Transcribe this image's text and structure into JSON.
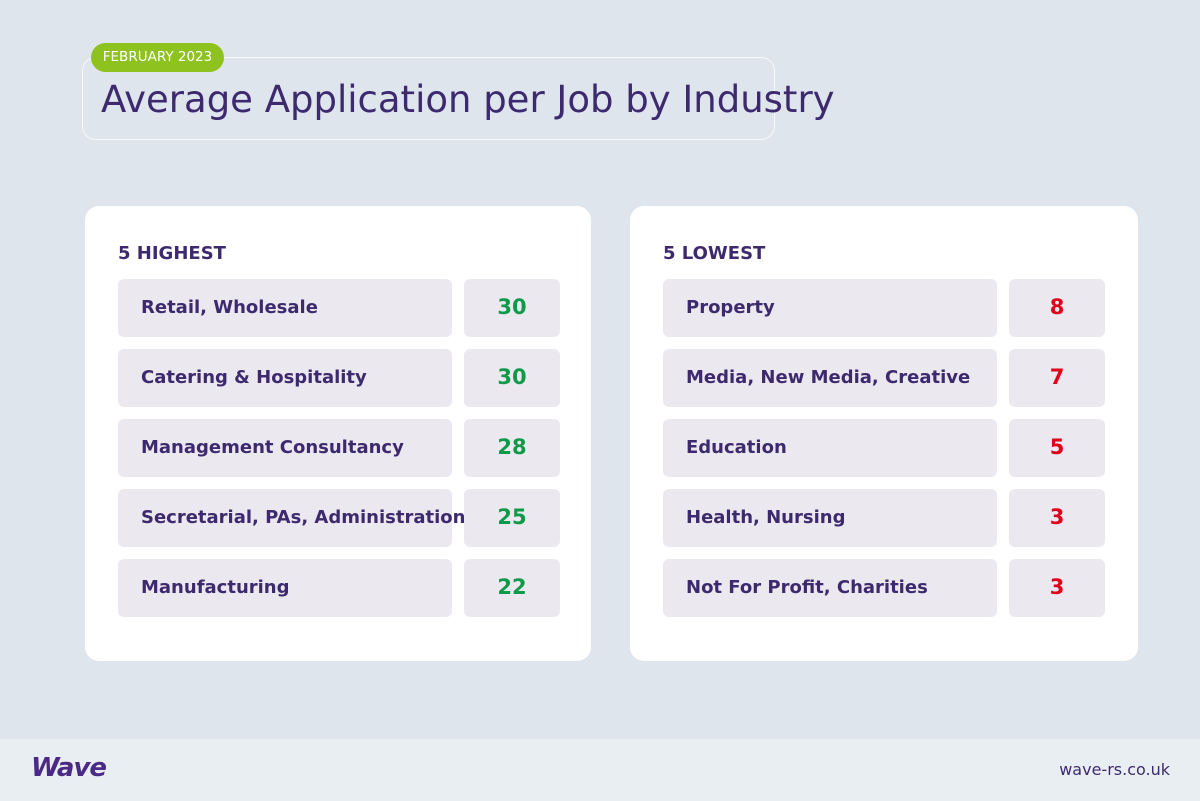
{
  "header": {
    "tag": "FEBRUARY 2023",
    "title": "Average Application per Job by Industry"
  },
  "highest": {
    "title": "5 HIGHEST",
    "rows": [
      {
        "label": "Retail, Wholesale",
        "value": 30
      },
      {
        "label": "Catering & Hospitality",
        "value": 30
      },
      {
        "label": "Management Consultancy",
        "value": 28
      },
      {
        "label": "Secretarial, PAs, Administration",
        "value": 25
      },
      {
        "label": "Manufacturing",
        "value": 22
      }
    ]
  },
  "lowest": {
    "title": "5 LOWEST",
    "rows": [
      {
        "label": "Property",
        "value": 8
      },
      {
        "label": "Media, New Media, Creative",
        "value": 7
      },
      {
        "label": "Education",
        "value": 5
      },
      {
        "label": "Health, Nursing",
        "value": 3
      },
      {
        "label": "Not For Profit, Charities",
        "value": 3
      }
    ]
  },
  "footer": {
    "logo": "Wave",
    "url": "wave-rs.co.uk"
  }
}
